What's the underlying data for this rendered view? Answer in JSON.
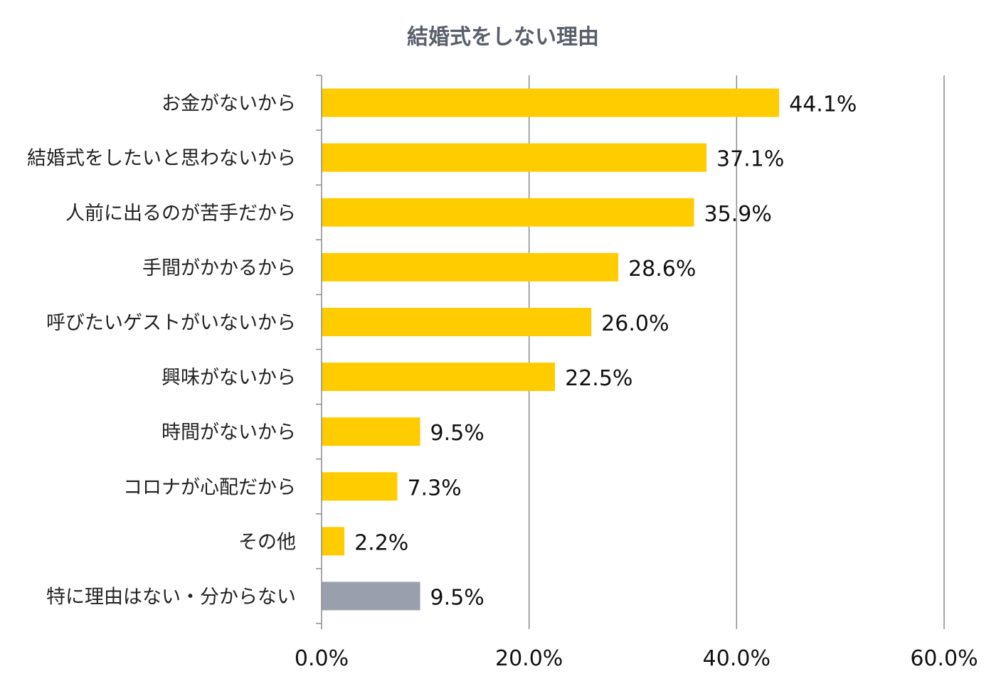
{
  "chart_data": {
    "type": "bar",
    "orientation": "horizontal",
    "title": "結婚式をしない理由",
    "categories": [
      "お金がないから",
      "結婚式をしたいと思わないから",
      "人前に出るのが苦手だから",
      "手間がかかるから",
      "呼びたいゲストがいないから",
      "興味がないから",
      "時間がないから",
      "コロナが心配だから",
      "その他",
      "特に理由はない・分からない"
    ],
    "values": [
      44.1,
      37.1,
      35.9,
      28.6,
      26.0,
      22.5,
      9.5,
      7.3,
      2.2,
      9.5
    ],
    "value_labels": [
      "44.1%",
      "37.1%",
      "35.9%",
      "28.6%",
      "26.0%",
      "22.5%",
      "9.5%",
      "7.3%",
      "2.2%",
      "9.5%"
    ],
    "bar_colors": [
      "#ffcc00",
      "#ffcc00",
      "#ffcc00",
      "#ffcc00",
      "#ffcc00",
      "#ffcc00",
      "#ffcc00",
      "#ffcc00",
      "#ffcc00",
      "#9a9fae"
    ],
    "xlim": [
      0,
      60
    ],
    "x_ticks": [
      0,
      20,
      40,
      60
    ],
    "x_tick_labels": [
      "0.0%",
      "20.0%",
      "40.0%",
      "60.0%"
    ],
    "grid": "vertical",
    "legend": "none"
  }
}
